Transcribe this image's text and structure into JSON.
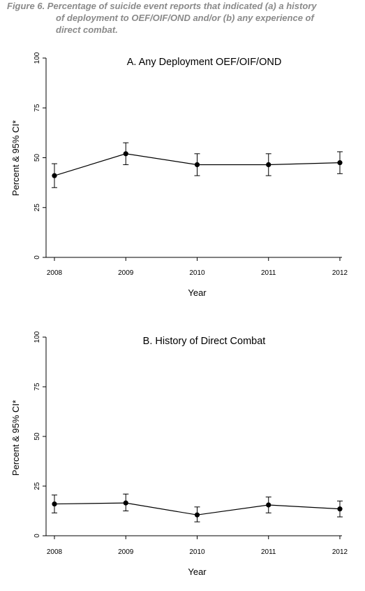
{
  "caption": {
    "line1": "Figure 6. Percentage of suicide event reports that indicated (a) a history",
    "line2": "of deployment to OEF/OIF/OND and/or (b) any experience of",
    "line3": "direct combat."
  },
  "chart_data": [
    {
      "type": "line",
      "title": "A. Any Deployment OEF/OIF/OND",
      "xlabel": "Year",
      "ylabel": "Percent & 95% CI*",
      "x": [
        2008,
        2009,
        2010,
        2011,
        2012
      ],
      "xticks": [
        "2008",
        "2009",
        "2010",
        "2011",
        "2012"
      ],
      "yticks": [
        0,
        25,
        50,
        75,
        100
      ],
      "ylim": [
        0,
        100
      ],
      "series": [
        {
          "values": [
            41,
            52,
            46.5,
            46.5,
            47.5
          ],
          "ci_low": [
            35,
            46.5,
            41,
            41,
            42
          ],
          "ci_high": [
            47,
            57.5,
            52,
            52,
            53
          ]
        }
      ],
      "grid": false,
      "color": "#000000"
    },
    {
      "type": "line",
      "title": "B. History of Direct Combat",
      "xlabel": "Year",
      "ylabel": "Percent & 95% CI*",
      "x": [
        2008,
        2009,
        2010,
        2011,
        2012
      ],
      "xticks": [
        "2008",
        "2009",
        "2010",
        "2011",
        "2012"
      ],
      "yticks": [
        0,
        25,
        50,
        75,
        100
      ],
      "ylim": [
        0,
        100
      ],
      "series": [
        {
          "values": [
            16,
            16.5,
            10.5,
            15.5,
            13.5
          ],
          "ci_low": [
            11.5,
            12.5,
            7,
            11.5,
            9.5
          ],
          "ci_high": [
            20.5,
            21,
            14.5,
            19.5,
            17.5
          ]
        }
      ],
      "grid": false,
      "color": "#000000"
    }
  ]
}
